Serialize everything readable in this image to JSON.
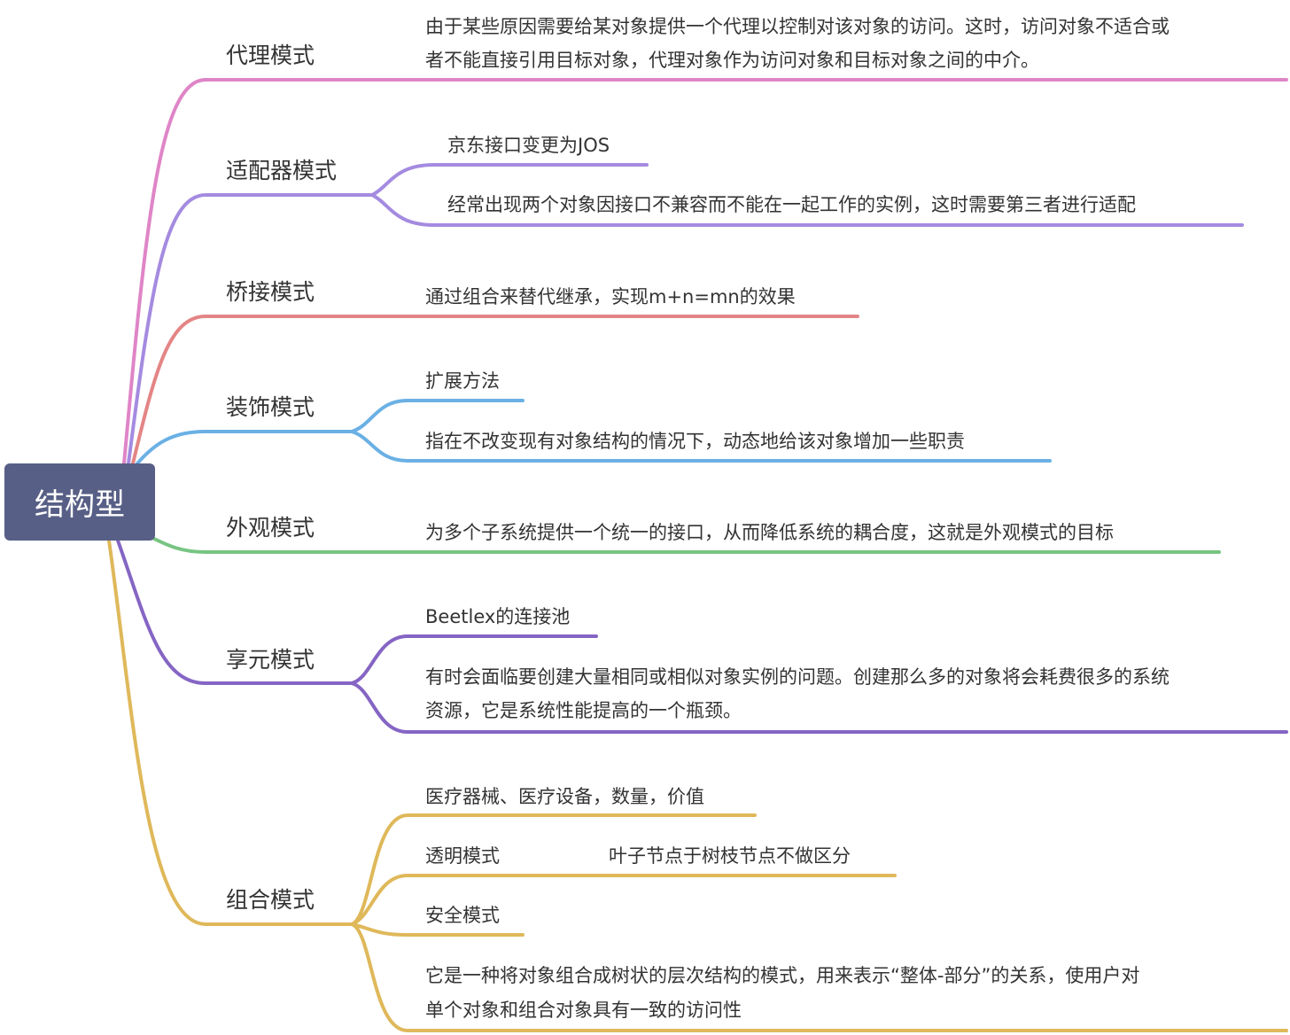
{
  "root": {
    "label": "结构型",
    "color": "#585f86"
  },
  "branches": [
    {
      "label": "代理模式",
      "color": "#df85c7",
      "children": [
        "由于某些原因需要给某对象提供一个代理以控制对该对象的访问。这时，访问对象不适合或",
        "者不能直接引用目标对象，代理对象作为访问对象和目标对象之间的中介。"
      ]
    },
    {
      "label": "适配器模式",
      "color": "#a48be0",
      "children": [
        "京东接口变更为JOS",
        "经常出现两个对象因接口不兼容而不能在一起工作的实例，这时需要第三者进行适配"
      ]
    },
    {
      "label": "桥接模式",
      "color": "#e48585",
      "children": [
        "通过组合来替代继承，实现m+n=mn的效果"
      ]
    },
    {
      "label": "装饰模式",
      "color": "#6ab0e4",
      "children": [
        "扩展方法",
        "指在不改变现有对象结构的情况下，动态地给该对象增加一些职责"
      ]
    },
    {
      "label": "外观模式",
      "color": "#77c482",
      "children": [
        "为多个子系统提供一个统一的接口，从而降低系统的耦合度，这就是外观模式的目标"
      ]
    },
    {
      "label": "享元模式",
      "color": "#8565c4",
      "children": [
        "Beetlex的连接池",
        "有时会面临要创建大量相同或相似对象实例的问题。创建那么多的对象将会耗费很多的系统",
        "资源，它是系统性能提高的一个瓶颈。"
      ]
    },
    {
      "label": "组合模式",
      "color": "#dfb85a",
      "children": [
        "医疗器械、医疗设备，数量，价值",
        "透明模式",
        "叶子节点于树枝节点不做区分",
        "安全模式",
        "它是一种将对象组合成树状的层次结构的模式，用来表示“整体-部分”的关系，使用户对",
        "单个对象和组合对象具有一致的访问性"
      ]
    }
  ]
}
